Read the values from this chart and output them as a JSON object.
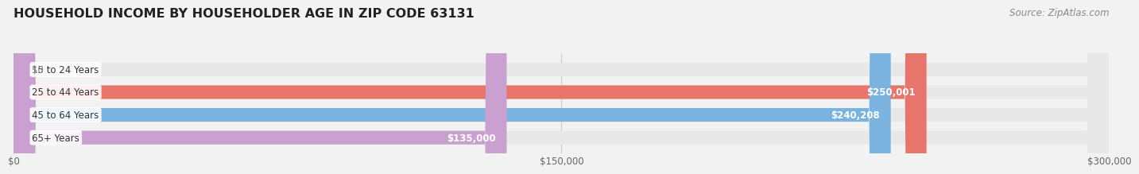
{
  "title": "HOUSEHOLD INCOME BY HOUSEHOLDER AGE IN ZIP CODE 63131",
  "source": "Source: ZipAtlas.com",
  "categories": [
    "15 to 24 Years",
    "25 to 44 Years",
    "45 to 64 Years",
    "65+ Years"
  ],
  "values": [
    0,
    250001,
    240208,
    135000
  ],
  "bar_colors": [
    "#f5c99a",
    "#e8756a",
    "#7ab3e0",
    "#c9a0d0"
  ],
  "value_labels": [
    "$0",
    "$250,001",
    "$240,208",
    "$135,000"
  ],
  "xlim": [
    0,
    300000
  ],
  "xticks": [
    0,
    150000,
    300000
  ],
  "xtick_labels": [
    "$0",
    "$150,000",
    "$300,000"
  ],
  "background_color": "#f2f2f2",
  "bar_background": "#e8e8e8",
  "title_fontsize": 11.5,
  "source_fontsize": 8.5,
  "bar_height": 0.6,
  "label_fontsize": 8.5,
  "value_fontsize": 8.5,
  "tick_fontsize": 8.5
}
